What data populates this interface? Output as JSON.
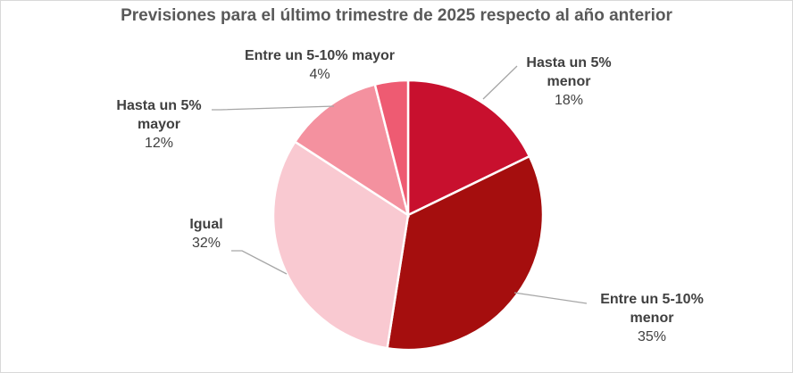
{
  "chart_data": {
    "type": "pie",
    "title": "Previsiones para el último trimestre de 2025 respecto al año anterior",
    "slices": [
      {
        "name": "Hasta un 5% menor",
        "name_lines": [
          "Hasta un 5%",
          "menor"
        ],
        "value": 18,
        "value_label": "18%",
        "color": "#c8102e"
      },
      {
        "name": "Entre un 5-10% menor",
        "name_lines": [
          "Entre un 5-10%",
          "menor"
        ],
        "value": 35,
        "value_label": "35%",
        "color": "#a50e0e"
      },
      {
        "name": "Igual",
        "name_lines": [
          "Igual"
        ],
        "value": 32,
        "value_label": "32%",
        "color": "#f9c9d1"
      },
      {
        "name": "Hasta un 5% mayor",
        "name_lines": [
          "Hasta un 5%",
          "mayor"
        ],
        "value": 12,
        "value_label": "12%",
        "color": "#f4919f"
      },
      {
        "name": "Entre un 5-10% mayor",
        "name_lines": [
          "Entre un 5-10% mayor"
        ],
        "value": 4,
        "value_label": "4%",
        "color": "#ee5b72"
      }
    ],
    "start_angle_deg": 0,
    "direction": "clockwise",
    "legend": "none",
    "leader_line_color": "#a6a6a6"
  }
}
